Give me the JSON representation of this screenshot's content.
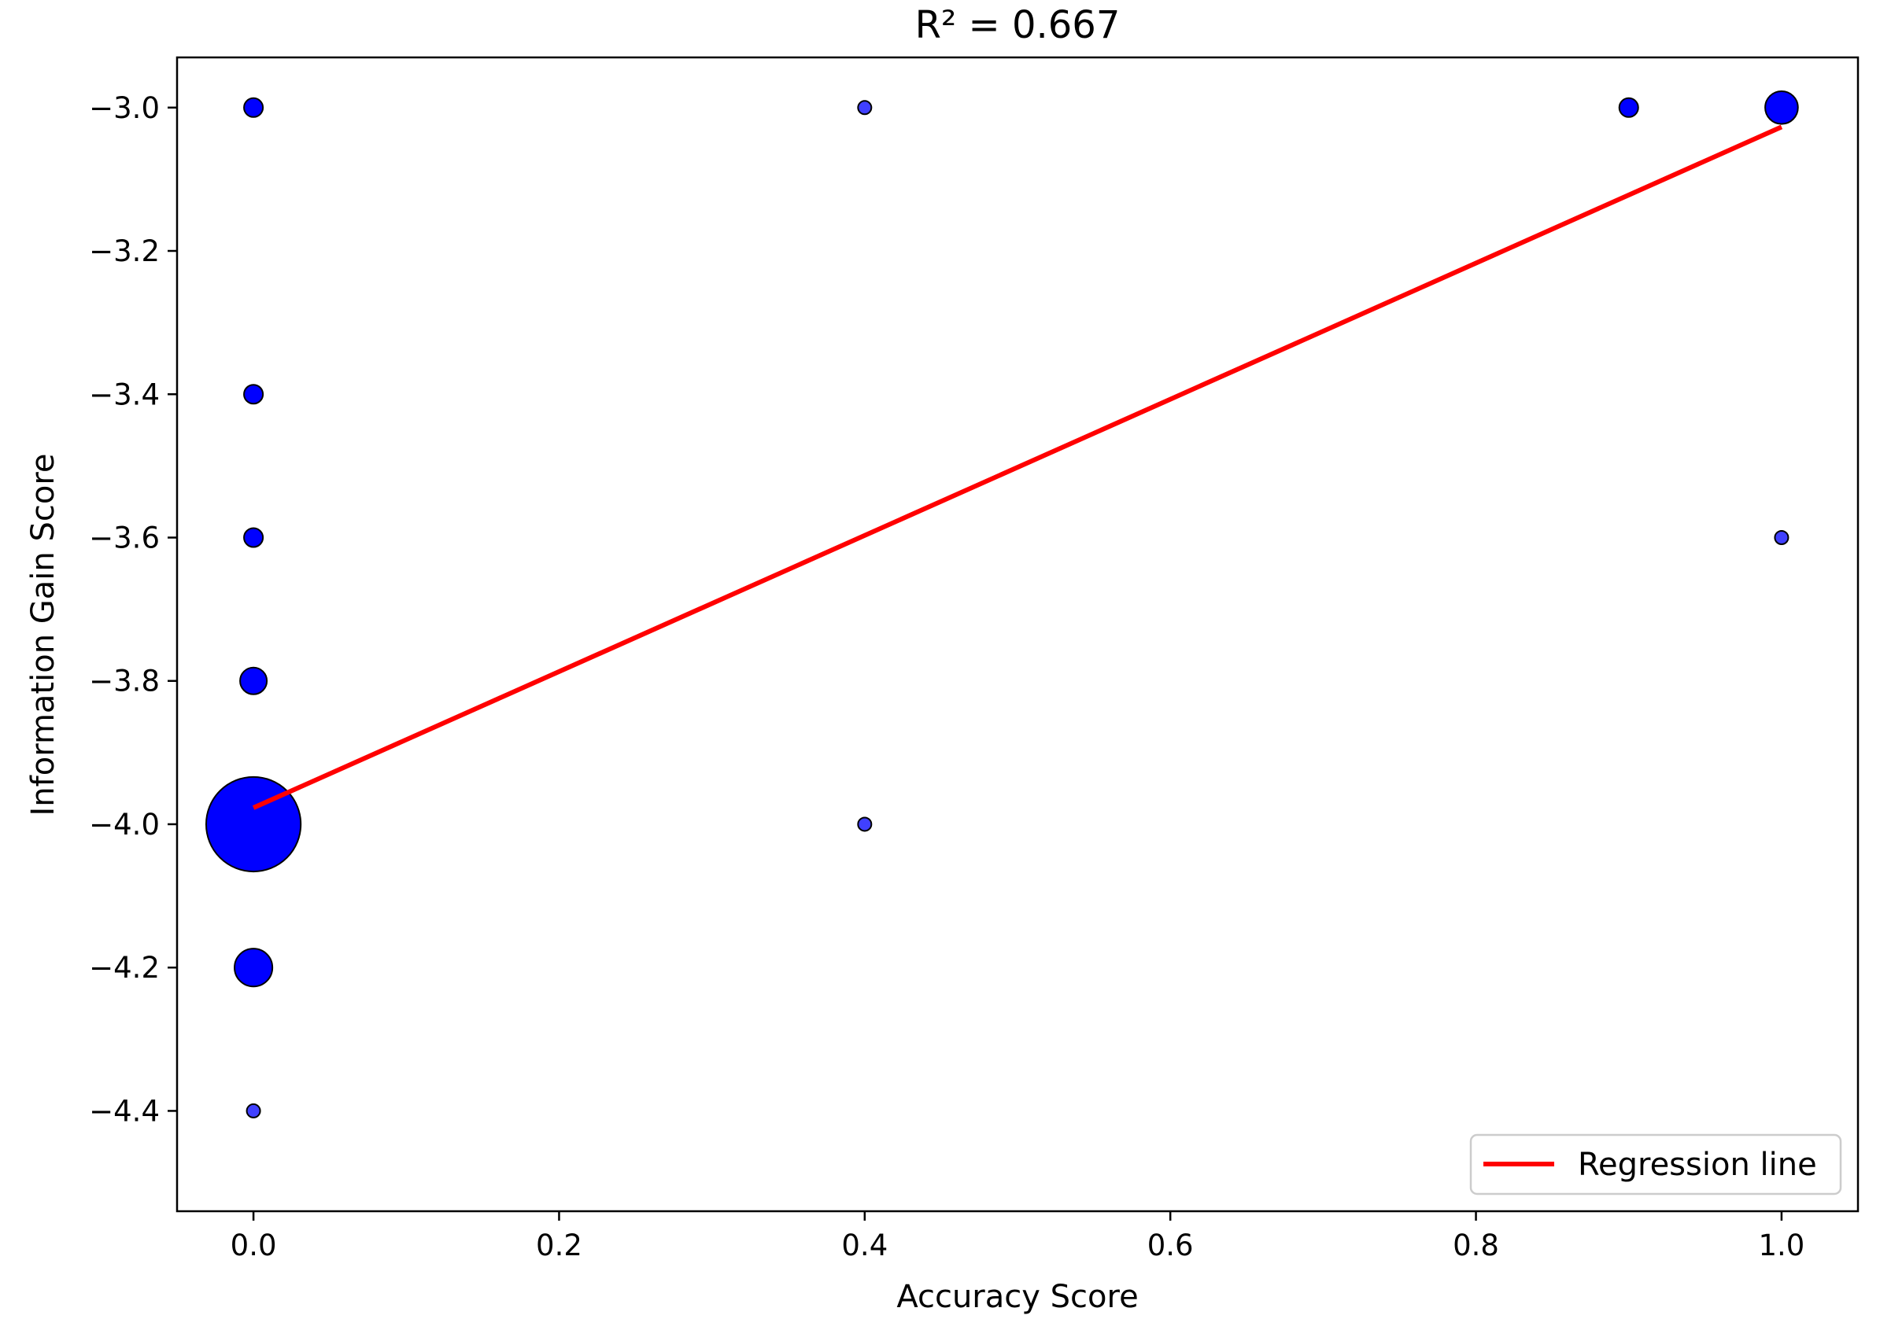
{
  "chart_data": {
    "type": "scatter",
    "title": "R² = 0.667",
    "xlabel": "Accuracy Score",
    "ylabel": "Information Gain Score",
    "xlim": [
      -0.05,
      1.05
    ],
    "ylim": [
      -4.54,
      -2.93
    ],
    "xticks": [
      0.0,
      0.2,
      0.4,
      0.6,
      0.8,
      1.0
    ],
    "xtick_labels": [
      "0.0",
      "0.2",
      "0.4",
      "0.6",
      "0.8",
      "1.0"
    ],
    "yticks": [
      -3.0,
      -3.2,
      -3.4,
      -3.6,
      -3.8,
      -4.0,
      -4.2,
      -4.4
    ],
    "ytick_labels": [
      "−3.0",
      "−3.2",
      "−3.4",
      "−3.6",
      "−3.8",
      "−4.0",
      "−4.2",
      "−4.4"
    ],
    "grid": false,
    "legend_position": "bottom-right",
    "series": [
      {
        "kind": "scatter",
        "color": "#0000ff",
        "points": [
          {
            "x": 0.0,
            "y": -3.0,
            "count": 2
          },
          {
            "x": 0.0,
            "y": -3.4,
            "count": 2
          },
          {
            "x": 0.0,
            "y": -3.6,
            "count": 2
          },
          {
            "x": 0.0,
            "y": -3.8,
            "count": 4
          },
          {
            "x": 0.0,
            "y": -4.0,
            "count": 50
          },
          {
            "x": 0.0,
            "y": -4.2,
            "count": 8
          },
          {
            "x": 0.0,
            "y": -4.4,
            "count": 1
          },
          {
            "x": 0.4,
            "y": -3.0,
            "count": 1
          },
          {
            "x": 0.4,
            "y": -4.0,
            "count": 1
          },
          {
            "x": 0.9,
            "y": -3.0,
            "count": 2
          },
          {
            "x": 1.0,
            "y": -3.0,
            "count": 6
          },
          {
            "x": 1.0,
            "y": -3.6,
            "count": 1
          }
        ]
      },
      {
        "kind": "line",
        "name": "Regression line",
        "color": "#ff0000",
        "x": [
          0.0,
          1.0
        ],
        "y": [
          -3.977,
          -3.027
        ]
      }
    ]
  }
}
